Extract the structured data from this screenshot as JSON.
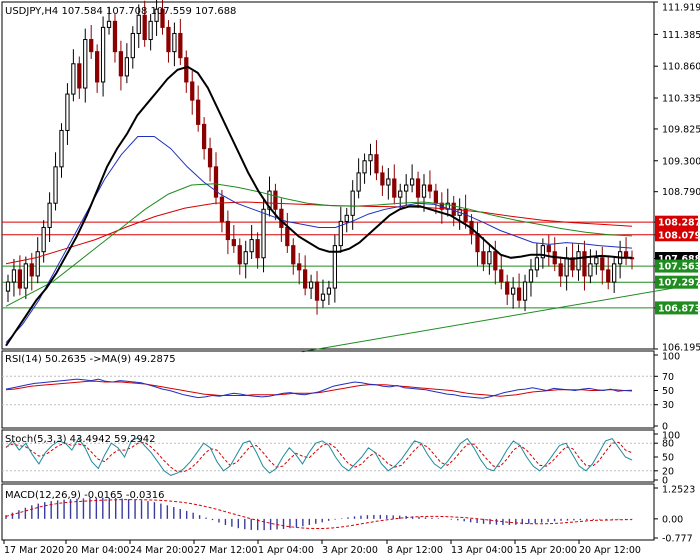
{
  "chart_data": {
    "type": "candlestick",
    "main": {
      "title": "USDJPY,H4  107.584 107.708 107.559 107.688",
      "y_ticks": [
        "111.919",
        "111.385",
        "110.860",
        "110.335",
        "109.825",
        "109.300",
        "108.790",
        "108.287",
        "108.079",
        "107.688",
        "107.563",
        "107.297",
        "106.873",
        "106.195"
      ],
      "ylim": [
        106.195,
        111.919
      ],
      "badges": [
        {
          "label": "108.287",
          "value": 108.287,
          "color": "#d60000"
        },
        {
          "label": "108.079",
          "value": 108.079,
          "color": "#d60000"
        },
        {
          "label": "107.688",
          "value": 107.688,
          "color": "#000000"
        },
        {
          "label": "107.563",
          "value": 107.563,
          "color": "#1e8c1e"
        },
        {
          "label": "107.297",
          "value": 107.297,
          "color": "#1e8c1e"
        },
        {
          "label": "106.873",
          "value": 106.873,
          "color": "#1e8c1e"
        }
      ],
      "hlines": [
        {
          "value": 108.287,
          "color": "#d60000"
        },
        {
          "value": 108.079,
          "color": "#d60000"
        },
        {
          "value": 107.563,
          "color": "#1e8c1e"
        },
        {
          "value": 107.297,
          "color": "#1e8c1e"
        },
        {
          "value": 106.873,
          "color": "#1e8c1e"
        }
      ],
      "trendline": {
        "from": [
          46,
          106.15
        ],
        "to": [
          110,
          107.33
        ],
        "color": "#1e8c1e"
      },
      "close": [
        107.3,
        107.5,
        107.2,
        107.6,
        107.4,
        107.8,
        108.2,
        108.6,
        109.2,
        109.8,
        110.4,
        110.9,
        110.5,
        111.3,
        111.1,
        110.6,
        111.5,
        111.6,
        111.1,
        110.7,
        111.0,
        111.4,
        111.7,
        111.3,
        111.6,
        111.8,
        111.5,
        111.1,
        111.4,
        111.0,
        110.6,
        110.3,
        109.9,
        109.5,
        109.2,
        108.7,
        108.3,
        108.0,
        107.9,
        107.6,
        107.8,
        108.0,
        107.7,
        108.5,
        108.8,
        108.5,
        108.2,
        107.9,
        107.6,
        107.5,
        107.2,
        107.3,
        107.0,
        107.1,
        107.2,
        107.9,
        108.3,
        108.4,
        108.8,
        109.1,
        109.3,
        109.4,
        109.1,
        108.9,
        109.0,
        108.7,
        108.8,
        108.9,
        109.0,
        108.7,
        108.9,
        108.8,
        108.6,
        108.5,
        108.6,
        108.4,
        108.5,
        108.3,
        108.1,
        107.8,
        107.6,
        107.8,
        107.5,
        107.3,
        107.1,
        107.2,
        107.0,
        107.3,
        107.5,
        107.7,
        107.9,
        107.8,
        107.6,
        107.4,
        107.7,
        107.5,
        107.8,
        107.4,
        107.6,
        107.7,
        107.5,
        107.3,
        107.6,
        107.8,
        107.7,
        107.688
      ],
      "ma_black": [
        106.25,
        106.5,
        106.75,
        107.0,
        107.2,
        107.45,
        107.75,
        108.05,
        108.4,
        108.8,
        109.2,
        109.5,
        109.75,
        110.05,
        110.25,
        110.45,
        110.65,
        110.8,
        110.85,
        110.75,
        110.5,
        110.15,
        109.8,
        109.45,
        109.1,
        108.8,
        108.55,
        108.35,
        108.2,
        108.05,
        107.95,
        107.85,
        107.8,
        107.8,
        107.85,
        107.95,
        108.1,
        108.25,
        108.4,
        108.5,
        108.55,
        108.55,
        108.5,
        108.45,
        108.4,
        108.3,
        108.2,
        108.05,
        107.9,
        107.75,
        107.7,
        107.72,
        107.75,
        107.75,
        107.72,
        107.7,
        107.68,
        107.7,
        107.72,
        107.73,
        107.72,
        107.7,
        107.7
      ],
      "ma_blue": [
        106.3,
        106.6,
        107.0,
        107.5,
        108.0,
        108.5,
        109.0,
        109.4,
        109.7,
        109.7,
        109.5,
        109.2,
        108.95,
        108.75,
        108.6,
        108.5,
        108.4,
        108.3,
        108.25,
        108.2,
        108.2,
        108.3,
        108.42,
        108.5,
        108.55,
        108.6,
        108.58,
        108.5,
        108.4,
        108.28,
        108.15,
        108.05,
        107.95,
        107.92,
        107.95,
        107.93,
        107.9,
        107.88,
        107.86
      ],
      "ma_green": [
        106.9,
        107.1,
        107.3,
        107.6,
        107.9,
        108.2,
        108.5,
        108.75,
        108.9,
        108.92,
        108.86,
        108.78,
        108.68,
        108.6,
        108.56,
        108.55,
        108.57,
        108.6,
        108.62,
        108.58,
        108.5,
        108.4,
        108.32,
        108.25,
        108.18,
        108.12,
        108.08,
        108.06
      ],
      "ma_red": [
        107.6,
        107.7,
        107.85,
        108.0,
        108.2,
        108.38,
        108.52,
        108.6,
        108.62,
        108.6,
        108.58,
        108.56,
        108.55,
        108.54,
        108.53,
        108.5,
        108.45,
        108.38,
        108.32,
        108.28,
        108.25,
        108.22
      ]
    },
    "rsi": {
      "title": "RSI(14) 50.2635  ->MA(9) 49.2875",
      "y_ticks": [
        "100",
        "70",
        "50",
        "30",
        "0"
      ],
      "ylim": [
        0,
        100
      ],
      "values": [
        52,
        54,
        56,
        58,
        60,
        61,
        62,
        63,
        64,
        65,
        66,
        65,
        64,
        66,
        63,
        62,
        64,
        63,
        62,
        61,
        58,
        55,
        52,
        50,
        47,
        44,
        42,
        40,
        41,
        43,
        42,
        44,
        46,
        45,
        43,
        42,
        41,
        42,
        44,
        46,
        47,
        45,
        44,
        46,
        48,
        52,
        56,
        58,
        60,
        62,
        61,
        59,
        58,
        56,
        55,
        57,
        54,
        53,
        52,
        51,
        49,
        47,
        45,
        44,
        42,
        41,
        40,
        39,
        41,
        44,
        47,
        49,
        51,
        52,
        54,
        52,
        50,
        53,
        52,
        51,
        50,
        52,
        53,
        51,
        50,
        52,
        49,
        50,
        50.26
      ],
      "ma": [
        51,
        52,
        54,
        56,
        57,
        58,
        59,
        60,
        61,
        62,
        63,
        63,
        62,
        62,
        62,
        61,
        60,
        59,
        57,
        55,
        53,
        51,
        49,
        47,
        45,
        44,
        43,
        43,
        43,
        43,
        44,
        44,
        44,
        44,
        45,
        46,
        46,
        46,
        47,
        49,
        51,
        53,
        55,
        57,
        58,
        58,
        58,
        57,
        56,
        55,
        54,
        53,
        52,
        51,
        50,
        48,
        46,
        45,
        44,
        43,
        42,
        43,
        44,
        46,
        48,
        49,
        50,
        51,
        51,
        51,
        51,
        50,
        50,
        51,
        51,
        50,
        49.29
      ]
    },
    "stoch": {
      "title": "Stoch(5,3,3) 43.4942  59.2942",
      "y_ticks": [
        "100",
        "80",
        "50",
        "20",
        "0"
      ],
      "ylim": [
        0,
        100
      ],
      "main": [
        70,
        85,
        65,
        80,
        55,
        35,
        60,
        75,
        85,
        80,
        65,
        90,
        70,
        40,
        25,
        55,
        80,
        70,
        50,
        85,
        92,
        75,
        60,
        40,
        20,
        10,
        15,
        25,
        40,
        60,
        80,
        70,
        40,
        20,
        30,
        55,
        80,
        85,
        60,
        30,
        15,
        25,
        50,
        70,
        55,
        35,
        60,
        80,
        85,
        75,
        50,
        30,
        20,
        35,
        50,
        70,
        60,
        35,
        20,
        30,
        45,
        65,
        85,
        80,
        55,
        35,
        25,
        40,
        60,
        80,
        90,
        70,
        45,
        25,
        20,
        40,
        65,
        85,
        75,
        50,
        30,
        20,
        35,
        55,
        75,
        80,
        55,
        30,
        20,
        35,
        60,
        85,
        90,
        70,
        50,
        43.49
      ],
      "signal": [
        72,
        78,
        75,
        72,
        62,
        52,
        55,
        65,
        75,
        80,
        75,
        78,
        75,
        60,
        45,
        40,
        55,
        65,
        65,
        70,
        80,
        82,
        72,
        58,
        42,
        28,
        18,
        18,
        25,
        38,
        55,
        68,
        65,
        48,
        32,
        38,
        55,
        72,
        75,
        60,
        42,
        28,
        30,
        45,
        58,
        52,
        48,
        62,
        75,
        80,
        70,
        52,
        35,
        28,
        35,
        50,
        60,
        50,
        35,
        28,
        32,
        48,
        65,
        78,
        72,
        55,
        38,
        32,
        45,
        62,
        78,
        78,
        62,
        45,
        30,
        30,
        45,
        65,
        75,
        65,
        48,
        32,
        30,
        42,
        58,
        72,
        68,
        48,
        32,
        30,
        42,
        62,
        80,
        82,
        65,
        59.29
      ]
    },
    "macd": {
      "title": "MACD(12,26,9) -0.0165 -0.0316",
      "y_ticks": [
        "1.2523",
        "0.00",
        "-0.777"
      ],
      "ylim": [
        -0.777,
        1.2523
      ],
      "hist": [
        0.15,
        0.25,
        0.35,
        0.45,
        0.55,
        0.62,
        0.68,
        0.72,
        0.75,
        0.78,
        0.8,
        0.82,
        0.83,
        0.84,
        0.85,
        0.86,
        0.85,
        0.84,
        0.82,
        0.8,
        0.78,
        0.75,
        0.72,
        0.68,
        0.62,
        0.55,
        0.48,
        0.4,
        0.32,
        0.25,
        0.15,
        0.05,
        -0.05,
        -0.15,
        -0.25,
        -0.32,
        -0.38,
        -0.42,
        -0.45,
        -0.46,
        -0.46,
        -0.45,
        -0.43,
        -0.41,
        -0.38,
        -0.35,
        -0.3,
        -0.25,
        -0.2,
        -0.14,
        -0.08,
        -0.03,
        0.02,
        0.06,
        0.1,
        0.13,
        0.15,
        0.16,
        0.16,
        0.15,
        0.14,
        0.13,
        0.12,
        0.1,
        0.08,
        0.06,
        0.04,
        0.02,
        0.0,
        -0.03,
        -0.06,
        -0.1,
        -0.14,
        -0.17,
        -0.2,
        -0.22,
        -0.24,
        -0.25,
        -0.25,
        -0.24,
        -0.22,
        -0.2,
        -0.18,
        -0.15,
        -0.12,
        -0.1,
        -0.08,
        -0.07,
        -0.06,
        -0.05,
        -0.05,
        -0.04,
        -0.03,
        -0.03,
        -0.02,
        -0.02,
        -0.02,
        -0.017
      ],
      "signal": [
        0.1,
        0.2,
        0.3,
        0.4,
        0.5,
        0.57,
        0.63,
        0.67,
        0.7,
        0.72,
        0.74,
        0.76,
        0.77,
        0.78,
        0.78,
        0.78,
        0.77,
        0.76,
        0.74,
        0.71,
        0.67,
        0.62,
        0.55,
        0.47,
        0.38,
        0.28,
        0.18,
        0.08,
        -0.02,
        -0.1,
        -0.18,
        -0.25,
        -0.31,
        -0.35,
        -0.38,
        -0.39,
        -0.39,
        -0.37,
        -0.33,
        -0.28,
        -0.22,
        -0.16,
        -0.1,
        -0.05,
        0.0,
        0.04,
        0.07,
        0.09,
        0.1,
        0.1,
        0.09,
        0.07,
        0.05,
        0.02,
        -0.02,
        -0.06,
        -0.1,
        -0.14,
        -0.17,
        -0.19,
        -0.2,
        -0.2,
        -0.19,
        -0.17,
        -0.14,
        -0.11,
        -0.08,
        -0.06,
        -0.05,
        -0.04,
        -0.035,
        -0.032
      ]
    },
    "x_labels": [
      "17 Mar 2020",
      "20 Mar 04:00",
      "24 Mar 20:00",
      "27 Mar 12:00",
      "1 Apr 04:00",
      "3 Apr 20:00",
      "8 Apr 12:00",
      "13 Apr 04:00",
      "15 Apr 20:00",
      "20 Apr 12:00"
    ],
    "colors": {
      "up": "#000000",
      "down": "#8b0000",
      "frame": "#000000",
      "grid": "#bdbdbd"
    }
  }
}
